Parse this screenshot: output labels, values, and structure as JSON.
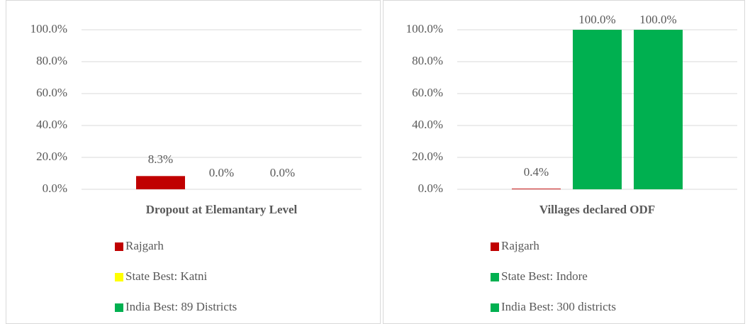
{
  "chart_data": [
    {
      "type": "bar",
      "title": "Dropout at Elemantary Level",
      "series": [
        {
          "name": "Rajgarh",
          "color": "#c00000",
          "values": [
            8.3
          ],
          "value_labels": [
            "8.3%"
          ]
        },
        {
          "name": "State Best: Katni",
          "color": "#ffff00",
          "values": [
            0.0
          ],
          "value_labels": [
            "0.0%"
          ]
        },
        {
          "name": "India Best: 89 Districts",
          "color": "#00b050",
          "values": [
            0.0
          ],
          "value_labels": [
            "0.0%"
          ]
        }
      ],
      "ylim": [
        0,
        100
      ],
      "yticks": [
        {
          "value": 0,
          "label": "0.0%"
        },
        {
          "value": 20,
          "label": "20.0%"
        },
        {
          "value": 40,
          "label": "40.0%"
        },
        {
          "value": 60,
          "label": "60.0%"
        },
        {
          "value": 80,
          "label": "80.0%"
        },
        {
          "value": 100,
          "label": "100.0%"
        }
      ],
      "grid": true,
      "legend": "bottom"
    },
    {
      "type": "bar",
      "title": "Villages declared ODF",
      "series": [
        {
          "name": "Rajgarh",
          "color": "#c00000",
          "values": [
            0.4
          ],
          "value_labels": [
            "0.4%"
          ]
        },
        {
          "name": "State Best: Indore",
          "color": "#00b050",
          "values": [
            100.0
          ],
          "value_labels": [
            "100.0%"
          ]
        },
        {
          "name": "India Best: 300 districts",
          "color": "#00b050",
          "values": [
            100.0
          ],
          "value_labels": [
            "100.0%"
          ]
        }
      ],
      "ylim": [
        0,
        100
      ],
      "yticks": [
        {
          "value": 0,
          "label": "0.0%"
        },
        {
          "value": 20,
          "label": "20.0%"
        },
        {
          "value": 40,
          "label": "40.0%"
        },
        {
          "value": 60,
          "label": "60.0%"
        },
        {
          "value": 80,
          "label": "80.0%"
        },
        {
          "value": 100,
          "label": "100.0%"
        }
      ],
      "grid": true,
      "legend": "bottom"
    }
  ]
}
